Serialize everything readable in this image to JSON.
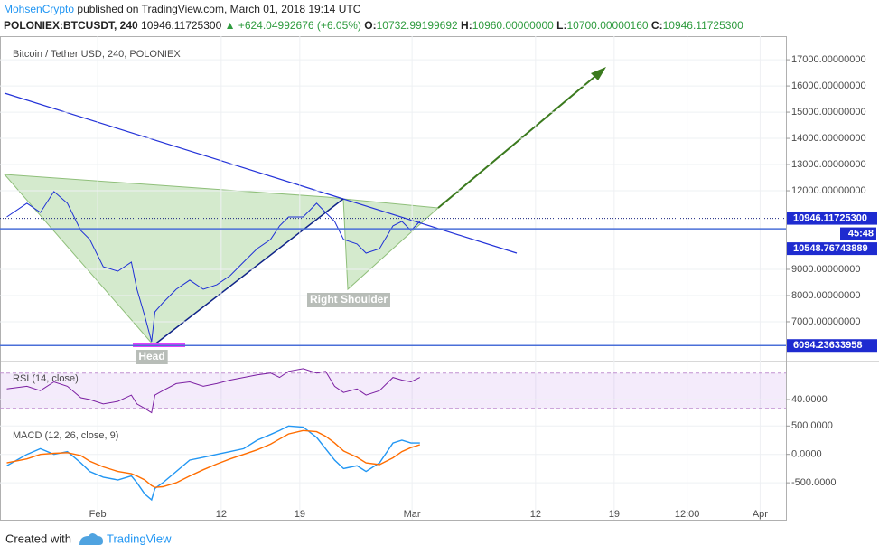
{
  "header": {
    "author": "MohsenCrypto",
    "published": "published on TradingView.com, March 01, 2018 19:14 UTC",
    "symbol": "POLONIEX:BTCUSDT, 240",
    "last": "10946.11725300",
    "change": "▲ +624.04992676 (+6.05%)",
    "o_label": "O:",
    "o": "10732.99199692",
    "h_label": "H:",
    "h": "10960.00000000",
    "l_label": "L:",
    "l": "10700.00000160",
    "c_label": "C:",
    "c": "10946.11725300"
  },
  "footer": {
    "created": "Created with",
    "brand": "TradingView"
  },
  "chart_data": [
    {
      "type": "line",
      "title": "Bitcoin / Tether USD, 240, POLONIEX",
      "color": "#1e2fd6",
      "x": [
        23.9,
        25.7,
        26.9,
        28.1,
        29.3,
        30.5,
        31.3,
        32.5,
        33.8,
        35.0,
        35.5,
        36.2,
        36.8,
        37.1,
        37.8,
        39.0,
        40.2,
        41.4,
        42.6,
        43.8,
        45.0,
        46.2,
        47.4,
        48.2,
        49.0,
        50.3,
        51.5,
        52.3,
        53.1,
        53.9,
        55.1,
        55.9,
        57.1,
        58.3,
        59.1,
        59.9,
        60.7
      ],
      "values": [
        11000,
        11520,
        11170,
        11970,
        11520,
        10480,
        10140,
        9100,
        8930,
        9280,
        8240,
        7210,
        6240,
        7380,
        7720,
        8240,
        8590,
        8240,
        8410,
        8760,
        9280,
        9790,
        10140,
        10660,
        11000,
        11000,
        11520,
        11170,
        10830,
        10140,
        9970,
        9620,
        9790,
        10660,
        10830,
        10480,
        10830
      ],
      "xlim": [
        23.3,
        93.3
      ],
      "xticks": [
        {
          "value": 32,
          "label": "Feb"
        },
        {
          "value": 43,
          "label": "12"
        },
        {
          "value": 50,
          "label": "19"
        },
        {
          "value": 60,
          "label": "Mar"
        },
        {
          "value": 71,
          "label": "12"
        },
        {
          "value": 78,
          "label": "19"
        },
        {
          "value": 84.5,
          "label": "12:00"
        },
        {
          "value": 91,
          "label": "Apr"
        }
      ],
      "ylim": [
        5550,
        17900
      ],
      "yticks": [
        {
          "value": 7000,
          "label": "7000.00000000"
        },
        {
          "value": 8000,
          "label": "8000.00000000"
        },
        {
          "value": 9000,
          "label": "9000.00000000"
        },
        {
          "value": 12000,
          "label": "12000.00000000"
        },
        {
          "value": 13000,
          "label": "13000.00000000"
        },
        {
          "value": 14000,
          "label": "14000.00000000"
        },
        {
          "value": 15000,
          "label": "15000.00000000"
        },
        {
          "value": 16000,
          "label": "16000.00000000"
        },
        {
          "value": 17000,
          "label": "17000.00000000"
        }
      ],
      "price_lines": [
        {
          "value": 10946.117253,
          "label": "10946.11725300"
        },
        {
          "value": 10548.76743889,
          "label": "10548.76743889"
        },
        {
          "value": 6094.23633958,
          "label": "6094.23633958"
        }
      ],
      "countdown": "45:48",
      "annotations": [
        "Head",
        "Right Shoulder"
      ]
    },
    {
      "type": "line",
      "title": "RSI (14, close)",
      "color": "#7b1fa2",
      "values": [
        52,
        55,
        50,
        60,
        55,
        42,
        40,
        35,
        38,
        45,
        35,
        30,
        25,
        45,
        50,
        58,
        60,
        55,
        58,
        62,
        65,
        68,
        70,
        65,
        72,
        75,
        70,
        72,
        55,
        48,
        52,
        45,
        50,
        65,
        62,
        60,
        65
      ],
      "ylim": [
        19.5,
        81
      ],
      "yticks": [
        {
          "value": 40,
          "label": "40.0000"
        }
      ],
      "bands": [
        30,
        70
      ]
    },
    {
      "type": "line",
      "title": "MACD (12, 26, close, 9)",
      "series": [
        {
          "color": "#2196f3",
          "values": [
            -200,
            0,
            100,
            0,
            50,
            -150,
            -300,
            -400,
            -450,
            -380,
            -500,
            -700,
            -800,
            -600,
            -500,
            -300,
            -100,
            -50,
            0,
            50,
            100,
            250,
            350,
            420,
            500,
            480,
            300,
            100,
            -100,
            -250,
            -200,
            -300,
            -150,
            200,
            250,
            200,
            200
          ]
        },
        {
          "color": "#ff6d00",
          "values": [
            -150,
            -80,
            0,
            20,
            30,
            -20,
            -120,
            -220,
            -300,
            -340,
            -380,
            -450,
            -550,
            -580,
            -570,
            -500,
            -380,
            -270,
            -170,
            -80,
            0,
            80,
            180,
            270,
            360,
            420,
            400,
            320,
            200,
            60,
            -50,
            -150,
            -180,
            -60,
            50,
            120,
            170
          ]
        }
      ],
      "ylim": [
        -1150,
        600
      ],
      "yticks": [
        {
          "value": 500,
          "label": "500.0000"
        },
        {
          "value": 0,
          "label": "0.0000"
        },
        {
          "value": -500,
          "label": "-500.0000"
        }
      ]
    }
  ]
}
